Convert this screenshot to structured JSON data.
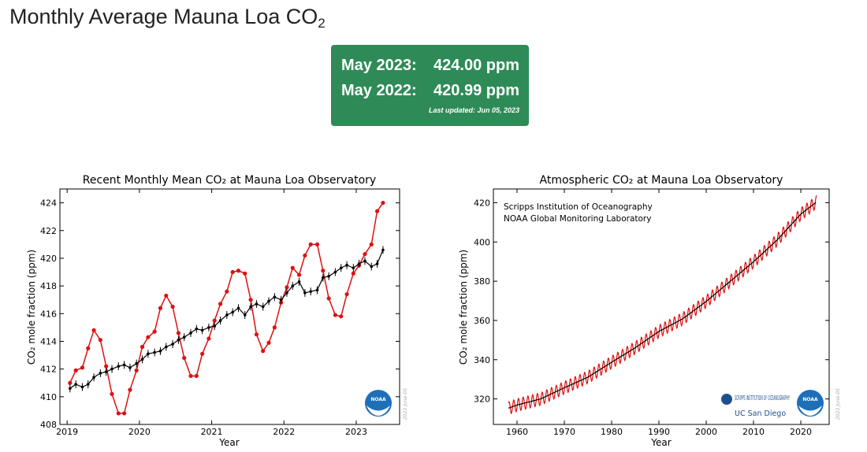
{
  "header": {
    "title_main": "Monthly Average Mauna Loa CO",
    "title_sub": "2"
  },
  "summary": {
    "row1_label": "May 2023:",
    "row1_value": "424.00 ppm",
    "row2_label": "May 2022:",
    "row2_value": "420.99 ppm",
    "last_updated": "Last updated: Jun 05, 2023"
  },
  "colors": {
    "panel_green": "#2e8b57",
    "red_series": "#e01010",
    "black_series": "#000000",
    "noaa_blue": "#1e6fb8"
  },
  "chart_data": [
    {
      "type": "line",
      "title": "Recent Monthly Mean CO₂ at Mauna Loa Observatory",
      "xlabel": "Year",
      "ylabel": "CO₂ mole fraction (ppm)",
      "xlim": [
        2018.9,
        2023.6
      ],
      "ylim": [
        408,
        425
      ],
      "xticks": [
        2019,
        2020,
        2021,
        2022,
        2023
      ],
      "yticks": [
        408,
        410,
        412,
        414,
        416,
        418,
        420,
        422,
        424
      ],
      "grid": false,
      "watermark": "2023 June-05",
      "series": [
        {
          "color": "#e01010",
          "x": [
            2019.04,
            2019.12,
            2019.21,
            2019.29,
            2019.37,
            2019.46,
            2019.54,
            2019.62,
            2019.71,
            2019.79,
            2019.87,
            2019.96,
            2020.04,
            2020.12,
            2020.21,
            2020.29,
            2020.37,
            2020.46,
            2020.54,
            2020.62,
            2020.71,
            2020.79,
            2020.87,
            2020.96,
            2021.04,
            2021.12,
            2021.21,
            2021.29,
            2021.37,
            2021.46,
            2021.54,
            2021.62,
            2021.71,
            2021.79,
            2021.87,
            2021.96,
            2022.04,
            2022.12,
            2022.21,
            2022.29,
            2022.37,
            2022.46,
            2022.54,
            2022.62,
            2022.71,
            2022.79,
            2022.87,
            2022.96,
            2023.04,
            2023.12,
            2023.21,
            2023.29,
            2023.37
          ],
          "values": [
            411.0,
            411.9,
            412.1,
            413.5,
            414.8,
            414.1,
            412.2,
            410.2,
            408.8,
            408.8,
            410.5,
            411.9,
            413.6,
            414.3,
            414.7,
            416.4,
            417.3,
            416.5,
            414.6,
            412.8,
            411.5,
            411.5,
            413.1,
            414.2,
            415.5,
            416.7,
            417.6,
            419.0,
            419.1,
            418.9,
            417.0,
            414.5,
            413.3,
            413.9,
            415.0,
            416.8,
            417.9,
            419.3,
            418.8,
            420.2,
            421.0,
            421.0,
            419.1,
            417.1,
            415.9,
            415.8,
            417.4,
            418.9,
            419.5,
            420.3,
            421.0,
            423.4,
            424.0
          ]
        },
        {
          "color": "#000000",
          "x": [
            2019.04,
            2019.12,
            2019.21,
            2019.29,
            2019.37,
            2019.46,
            2019.54,
            2019.62,
            2019.71,
            2019.79,
            2019.87,
            2019.96,
            2020.04,
            2020.12,
            2020.21,
            2020.29,
            2020.37,
            2020.46,
            2020.54,
            2020.62,
            2020.71,
            2020.79,
            2020.87,
            2020.96,
            2021.04,
            2021.12,
            2021.21,
            2021.29,
            2021.37,
            2021.46,
            2021.54,
            2021.62,
            2021.71,
            2021.79,
            2021.87,
            2021.96,
            2022.04,
            2022.12,
            2022.21,
            2022.29,
            2022.37,
            2022.46,
            2022.54,
            2022.62,
            2022.71,
            2022.79,
            2022.87,
            2022.96,
            2023.04,
            2023.12,
            2023.21,
            2023.29,
            2023.37
          ],
          "values": [
            410.6,
            410.9,
            410.7,
            410.9,
            411.4,
            411.7,
            411.8,
            412.0,
            412.2,
            412.3,
            412.1,
            412.4,
            412.7,
            413.1,
            413.2,
            413.3,
            413.6,
            413.8,
            414.1,
            414.3,
            414.6,
            414.9,
            414.8,
            415.0,
            415.1,
            415.5,
            415.9,
            416.1,
            416.4,
            415.9,
            416.5,
            416.7,
            416.5,
            416.9,
            417.2,
            417.0,
            417.5,
            418.0,
            418.3,
            417.5,
            417.6,
            417.7,
            418.6,
            418.7,
            419.0,
            419.3,
            419.5,
            419.3,
            419.6,
            419.8,
            419.4,
            419.6,
            420.6
          ]
        }
      ]
    },
    {
      "type": "line",
      "title": "Atmospheric CO₂ at Mauna Loa Observatory",
      "xlabel": "Year",
      "ylabel": "CO₂ mole fraction (ppm)",
      "xlim": [
        1955,
        2026
      ],
      "ylim": [
        307,
        427
      ],
      "xticks": [
        1960,
        1970,
        1980,
        1990,
        2000,
        2010,
        2020
      ],
      "yticks": [
        320,
        340,
        360,
        380,
        400,
        420
      ],
      "grid": false,
      "watermark": "2023 June-05",
      "annotations": [
        "Scripps Institution of Oceanography",
        "NOAA Global Monitoring Laboratory"
      ],
      "logos": [
        "SCRIPPS INSTITUTION OF OCEANOGRAPHY",
        "UC San Diego",
        "NOAA"
      ],
      "series": [
        {
          "color": "#e01010",
          "x": [
            1958.2,
            1960,
            1965,
            1970,
            1975,
            1980,
            1985,
            1990,
            1995,
            2000,
            2005,
            2010,
            2015,
            2020,
            2023.4
          ],
          "values": [
            315.7,
            316.9,
            320.0,
            325.7,
            331.1,
            338.7,
            346.1,
            354.4,
            360.8,
            369.7,
            379.8,
            389.9,
            401.0,
            414.2,
            424.0
          ],
          "seasonal_amplitude_ppm": 3.2
        },
        {
          "color": "#000000",
          "x": [
            1958.2,
            1960,
            1965,
            1970,
            1975,
            1980,
            1985,
            1990,
            1995,
            2000,
            2005,
            2010,
            2015,
            2020,
            2023.4
          ],
          "values": [
            315.3,
            316.9,
            320.0,
            325.7,
            331.1,
            338.7,
            346.1,
            354.4,
            360.8,
            369.7,
            379.8,
            389.9,
            401.0,
            414.2,
            420.5
          ]
        }
      ]
    }
  ]
}
